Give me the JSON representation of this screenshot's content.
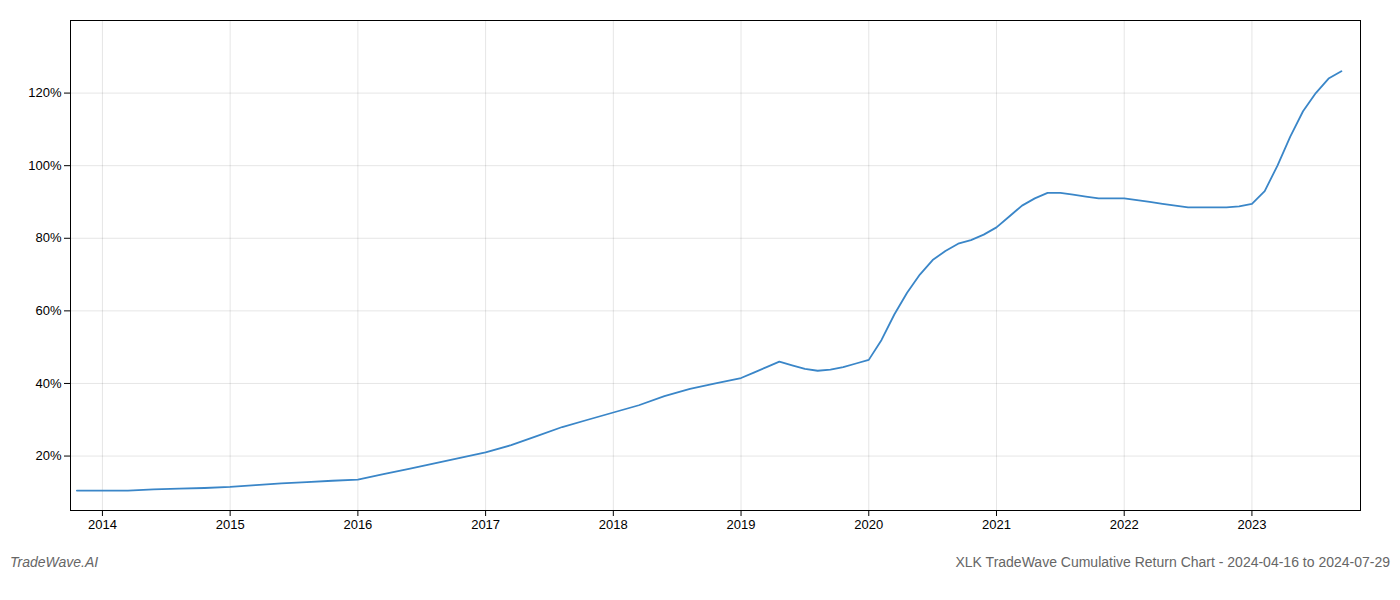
{
  "chart_data": {
    "type": "line",
    "title": "XLK TradeWave Cumulative Return Chart - 2024-04-16 to 2024-07-29",
    "annotations": [
      "TradeWave.AI"
    ],
    "color": "#3a86c8",
    "x": [
      2013.8,
      2014.0,
      2014.2,
      2014.4,
      2014.6,
      2014.8,
      2015.0,
      2015.2,
      2015.4,
      2015.6,
      2015.8,
      2016.0,
      2016.2,
      2016.4,
      2016.6,
      2016.8,
      2017.0,
      2017.2,
      2017.4,
      2017.6,
      2017.8,
      2018.0,
      2018.2,
      2018.4,
      2018.6,
      2018.8,
      2019.0,
      2019.1,
      2019.2,
      2019.3,
      2019.4,
      2019.5,
      2019.6,
      2019.7,
      2019.8,
      2019.9,
      2020.0,
      2020.1,
      2020.2,
      2020.3,
      2020.4,
      2020.5,
      2020.6,
      2020.7,
      2020.8,
      2020.9,
      2021.0,
      2021.1,
      2021.2,
      2021.3,
      2021.4,
      2021.5,
      2021.6,
      2021.7,
      2021.8,
      2021.9,
      2022.0,
      2022.1,
      2022.2,
      2022.3,
      2022.4,
      2022.5,
      2022.6,
      2022.7,
      2022.8,
      2022.9,
      2023.0,
      2023.1,
      2023.2,
      2023.3,
      2023.4,
      2023.5,
      2023.6,
      2023.7
    ],
    "values": [
      10.5,
      10.5,
      10.5,
      10.8,
      11.0,
      11.2,
      11.5,
      12.0,
      12.5,
      12.8,
      13.2,
      13.5,
      15.0,
      16.5,
      18.0,
      19.5,
      21.0,
      23.0,
      25.5,
      28.0,
      30.0,
      32.0,
      34.0,
      36.5,
      38.5,
      40.0,
      41.5,
      43.0,
      44.5,
      46.0,
      45.0,
      44.0,
      43.5,
      43.8,
      44.5,
      45.5,
      46.5,
      52.0,
      59.0,
      65.0,
      70.0,
      74.0,
      76.5,
      78.5,
      79.5,
      81.0,
      83.0,
      86.0,
      89.0,
      91.0,
      92.5,
      92.5,
      92.0,
      91.5,
      91.0,
      91.0,
      91.0,
      90.5,
      90.0,
      89.5,
      89.0,
      88.5,
      88.5,
      88.5,
      88.5,
      88.8,
      89.5,
      93.0,
      100.0,
      108.0,
      115.0,
      120.0,
      124.0,
      126.0
    ],
    "xlim": [
      2013.75,
      2023.85
    ],
    "xticks": [
      2014,
      2015,
      2016,
      2017,
      2018,
      2019,
      2020,
      2021,
      2022,
      2023
    ],
    "ylim": [
      5,
      140
    ],
    "yticks": [
      {
        "value": 20,
        "label": "20%"
      },
      {
        "value": 40,
        "label": "40%"
      },
      {
        "value": 60,
        "label": "60%"
      },
      {
        "value": 80,
        "label": "80%"
      },
      {
        "value": 100,
        "label": "100%"
      },
      {
        "value": 120,
        "label": "120%"
      }
    ],
    "grid": true
  }
}
